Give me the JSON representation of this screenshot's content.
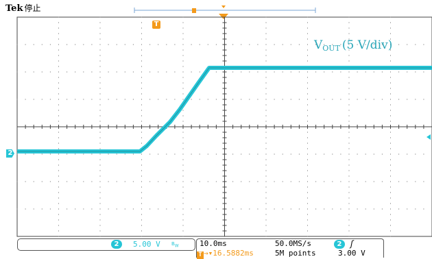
{
  "header": {
    "brand": "Tek",
    "run_state": "停止"
  },
  "waveform": {
    "channel": "2",
    "label_main": "V",
    "label_sub": "OUT",
    "label_rest": "(5 V/div)",
    "trace_color": "#26c5d6"
  },
  "markers": {
    "trigger_position": "T",
    "channel_ground": "2"
  },
  "status": {
    "channel_badge": "2",
    "volts_per_div": "5.00 V",
    "bandwidth_icon": "bw-limit-icon",
    "time_per_div": "10.0ms",
    "sample_rate": "50.0MS/s",
    "trigger_delay": "16.5882ms",
    "record_length": "5M points",
    "trigger_source": "2",
    "trigger_edge_icon": "rising-edge-icon",
    "trigger_level": "3.00 V"
  },
  "colors": {
    "accent_orange": "#f39a1b",
    "ch2_cyan": "#26c5d6"
  }
}
